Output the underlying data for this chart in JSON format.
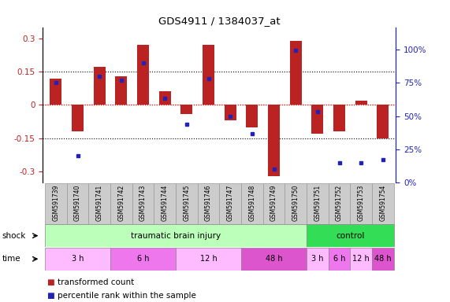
{
  "title": "GDS4911 / 1384037_at",
  "samples": [
    "GSM591739",
    "GSM591740",
    "GSM591741",
    "GSM591742",
    "GSM591743",
    "GSM591744",
    "GSM591745",
    "GSM591746",
    "GSM591747",
    "GSM591748",
    "GSM591749",
    "GSM591750",
    "GSM591751",
    "GSM591752",
    "GSM591753",
    "GSM591754"
  ],
  "bar_values": [
    0.12,
    -0.12,
    0.17,
    0.13,
    0.27,
    0.06,
    -0.04,
    0.27,
    -0.07,
    -0.1,
    -0.32,
    0.29,
    -0.13,
    -0.12,
    0.02,
    -0.15
  ],
  "dot_values": [
    0.75,
    0.2,
    0.8,
    0.77,
    0.9,
    0.63,
    0.44,
    0.78,
    0.5,
    0.37,
    0.1,
    0.99,
    0.53,
    0.15,
    0.15,
    0.17
  ],
  "bar_color": "#bb2222",
  "dot_color": "#2222bb",
  "ylim": [
    -0.35,
    0.35
  ],
  "y2lim": [
    0,
    1.166
  ],
  "yticks": [
    -0.3,
    -0.15,
    0.0,
    0.15,
    0.3
  ],
  "ytick_labels": [
    "-0.3",
    "-0.15",
    "0",
    "0.15",
    "0.3"
  ],
  "y2ticks": [
    0.0,
    0.25,
    0.5,
    0.75,
    1.0
  ],
  "y2ticklabels": [
    "0%",
    "25%",
    "50%",
    "75%",
    "100%"
  ],
  "hlines": [
    0.15,
    0.0,
    -0.15
  ],
  "shock_groups": [
    {
      "label": "traumatic brain injury",
      "start": 0,
      "end": 11,
      "color": "#bbffbb"
    },
    {
      "label": "control",
      "start": 12,
      "end": 15,
      "color": "#33dd55"
    }
  ],
  "time_groups": [
    {
      "label": "3 h",
      "start": 0,
      "end": 2,
      "color": "#ffbbff"
    },
    {
      "label": "6 h",
      "start": 3,
      "end": 5,
      "color": "#ee77ee"
    },
    {
      "label": "12 h",
      "start": 6,
      "end": 8,
      "color": "#ffbbff"
    },
    {
      "label": "48 h",
      "start": 9,
      "end": 11,
      "color": "#dd55cc"
    },
    {
      "label": "3 h",
      "start": 12,
      "end": 12,
      "color": "#ffbbff"
    },
    {
      "label": "6 h",
      "start": 13,
      "end": 13,
      "color": "#ee77ee"
    },
    {
      "label": "12 h",
      "start": 14,
      "end": 14,
      "color": "#ffbbff"
    },
    {
      "label": "48 h",
      "start": 15,
      "end": 15,
      "color": "#dd55cc"
    }
  ],
  "legend_items": [
    {
      "label": "transformed count",
      "color": "#bb2222"
    },
    {
      "label": "percentile rank within the sample",
      "color": "#2222bb"
    }
  ],
  "sample_box_color": "#cccccc",
  "sample_box_edge": "#999999",
  "background_color": "#ffffff"
}
